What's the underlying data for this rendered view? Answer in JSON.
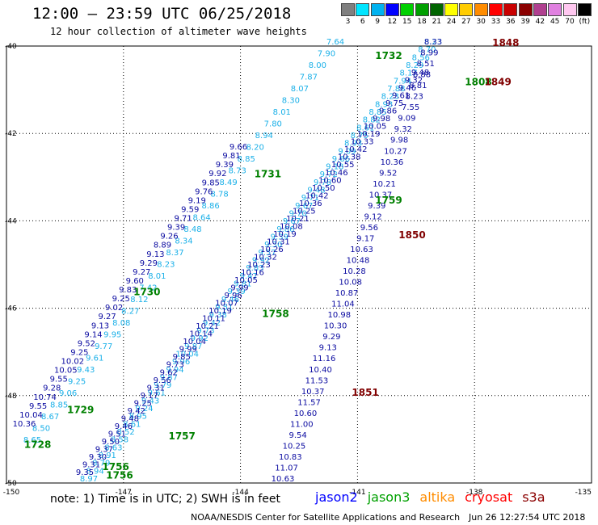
{
  "header": {
    "title": "12:00 — 23:59 UTC 06/25/2018",
    "subtitle": "12 hour collection of altimeter wave heights"
  },
  "legend": {
    "items": [
      {
        "label": "3",
        "color": "#7f7f7f"
      },
      {
        "label": "6",
        "color": "#00e5ff"
      },
      {
        "label": "9",
        "color": "#00b2f0"
      },
      {
        "label": "12",
        "color": "#0000ff"
      },
      {
        "label": "15",
        "color": "#00d000"
      },
      {
        "label": "18",
        "color": "#00a000"
      },
      {
        "label": "21",
        "color": "#006400"
      },
      {
        "label": "24",
        "color": "#ffff00"
      },
      {
        "label": "27",
        "color": "#ffcc00"
      },
      {
        "label": "30",
        "color": "#ff8c00"
      },
      {
        "label": "33",
        "color": "#ff0000"
      },
      {
        "label": "36",
        "color": "#c80000"
      },
      {
        "label": "39",
        "color": "#8b0000"
      },
      {
        "label": "42",
        "color": "#b04090"
      },
      {
        "label": "45",
        "color": "#e080e0"
      },
      {
        "label": "70",
        "color": "#ffc8f0"
      },
      {
        "label": "(ft)",
        "color": "#000000"
      }
    ]
  },
  "axes": {
    "lat_labels": [
      "-40",
      "-42",
      "-44",
      "-46",
      "-48",
      "-50"
    ],
    "lon_labels": [
      "-150",
      "-147",
      "-144",
      "-141",
      "-138",
      "-135"
    ]
  },
  "colors": {
    "light": "#1ab0e8",
    "dark": "#0a0aa0",
    "time": "#008000",
    "time_dark": "#800000"
  },
  "tracks": [
    {
      "color": "light",
      "values": [
        "8.65",
        "8.50",
        "8.67",
        "8.85",
        "9.06",
        "9.25",
        "9.43",
        "9.61",
        "9.77",
        "9.95",
        "8.08",
        "8.27",
        "8.12",
        "7.42",
        "8.01",
        "8.23",
        "8.37",
        "8.34",
        "8.48",
        "8.64",
        "8.86",
        "8.78",
        "8.49",
        "8.73",
        "8.85",
        "8.20",
        "8.94",
        "7.80",
        "8.01",
        "8.30",
        "8.07",
        "7.87",
        "8.00",
        "7.90",
        "7.64"
      ]
    },
    {
      "color": "dark",
      "values": [
        "10.36",
        "10.04",
        "9.55",
        "10.74",
        "9.28",
        "9.55",
        "10.05",
        "10.02",
        "9.25",
        "9.52",
        "9.14",
        "9.13",
        "9.27",
        "9.02",
        "9.25",
        "9.83",
        "9.60",
        "9.27",
        "9.29",
        "9.13",
        "8.89",
        "9.26",
        "9.39",
        "9.71",
        "9.59",
        "9.19",
        "9.76",
        "9.85",
        "9.92",
        "9.39",
        "9.81",
        "9.66"
      ]
    },
    {
      "color": "light",
      "values": [
        "8.97",
        "8.94",
        "8.79",
        "8.91",
        "8.63",
        "8.58",
        "8.52",
        "8.61",
        "8.95",
        "9.24",
        "9.43",
        "9.61",
        "9.79",
        "9.87",
        "9.94",
        "9.96",
        "10.04",
        "9.87",
        "9.92",
        "9.73",
        "9.42",
        "9.38",
        "9.51",
        "9.46",
        "9.39",
        "9.81",
        "9.47",
        "9.83",
        "9.92",
        "9.57",
        "9.30",
        "9.39",
        "9.86",
        "9.67",
        "9.70",
        "9.67",
        "9.71",
        "9.48",
        "9.78",
        "9.72",
        "9.18",
        "9.66",
        "9.09",
        "8.93",
        "8.75",
        "8.61",
        "8.82",
        "8.85",
        "8.93",
        "8.23",
        "7.88",
        "7.94",
        "8.17",
        "8.29",
        "8.56",
        "8.70",
        "8.23"
      ]
    },
    {
      "color": "dark",
      "values": [
        "9.35",
        "9.31",
        "9.30",
        "9.37",
        "9.50",
        "9.51",
        "9.46",
        "9.48",
        "9.42",
        "9.25",
        "9.17",
        "9.31",
        "9.56",
        "9.62",
        "9.73",
        "9.85",
        "9.99",
        "10.04",
        "10.14",
        "10.21",
        "10.11",
        "10.19",
        "10.07",
        "9.96",
        "9.99",
        "10.05",
        "10.16",
        "10.23",
        "10.32",
        "10.26",
        "10.31",
        "10.19",
        "10.08",
        "10.21",
        "10.25",
        "10.36",
        "10.42",
        "10.50",
        "10.60",
        "10.46",
        "10.55",
        "10.38",
        "10.42",
        "10.33",
        "10.19",
        "10.05",
        "9.98",
        "9.86",
        "9.75",
        "9.61",
        "9.46",
        "9.32",
        "9.48"
      ]
    },
    {
      "color": "dark",
      "values": [
        "10.63",
        "11.07",
        "10.83",
        "10.25",
        "9.54",
        "11.00",
        "10.60",
        "11.57",
        "10.37",
        "11.53",
        "10.40",
        "11.16",
        "9.13",
        "9.29",
        "10.30",
        "10.98",
        "11.04",
        "10.87",
        "10.08",
        "10.28",
        "10.48",
        "10.63",
        "9.17",
        "9.56",
        "9.12",
        "9.39",
        "10.37",
        "10.21",
        "9.52",
        "10.36",
        "10.27",
        "9.98",
        "9.32",
        "9.09",
        "7.55",
        "8.23",
        "8.81",
        "8.88",
        "8.51",
        "8.99",
        "8.33"
      ]
    }
  ],
  "time_labels": [
    {
      "text": "1728",
      "lon": -149.2,
      "lat": -49.2,
      "color": "time"
    },
    {
      "text": "1729",
      "lon": -148.1,
      "lat": -48.4,
      "color": "time"
    },
    {
      "text": "1730",
      "lon": -146.4,
      "lat": -45.7,
      "color": "time"
    },
    {
      "text": "1731",
      "lon": -143.3,
      "lat": -43.0,
      "color": "time"
    },
    {
      "text": "1732",
      "lon": -140.2,
      "lat": -40.3,
      "color": "time"
    },
    {
      "text": "1756",
      "lon": -147.1,
      "lat": -49.9,
      "color": "time"
    },
    {
      "text": "1756",
      "lon": -147.2,
      "lat": -49.7,
      "color": "time"
    },
    {
      "text": "1757",
      "lon": -145.5,
      "lat": -49.0,
      "color": "time"
    },
    {
      "text": "1758",
      "lon": -143.1,
      "lat": -46.2,
      "color": "time"
    },
    {
      "text": "1759",
      "lon": -140.2,
      "lat": -43.6,
      "color": "time"
    },
    {
      "text": "1808",
      "lon": -137.9,
      "lat": -40.9,
      "color": "time"
    },
    {
      "text": "1848",
      "lon": -137.2,
      "lat": -40.0,
      "color": "time_dark"
    },
    {
      "text": "1849",
      "lon": -137.4,
      "lat": -40.9,
      "color": "time_dark"
    },
    {
      "text": "1850",
      "lon": -139.6,
      "lat": -44.4,
      "color": "time_dark"
    },
    {
      "text": "1851",
      "lon": -140.8,
      "lat": -48.0,
      "color": "time_dark"
    }
  ],
  "footer": {
    "note": "note: 1) Time is in UTC; 2) SWH is in feet",
    "satellites": [
      {
        "name": "jason2",
        "color": "#0000ff"
      },
      {
        "name": "jason3",
        "color": "#00a000"
      },
      {
        "name": "altika",
        "color": "#ff8c00"
      },
      {
        "name": "cryosat",
        "color": "#ff0000"
      },
      {
        "name": "s3a",
        "color": "#8b0000"
      }
    ],
    "credit": "NOAA/NESDIS Center for Satellite Applications and Research",
    "timestamp": "Jun 26 12:27:54 UTC 2018"
  }
}
